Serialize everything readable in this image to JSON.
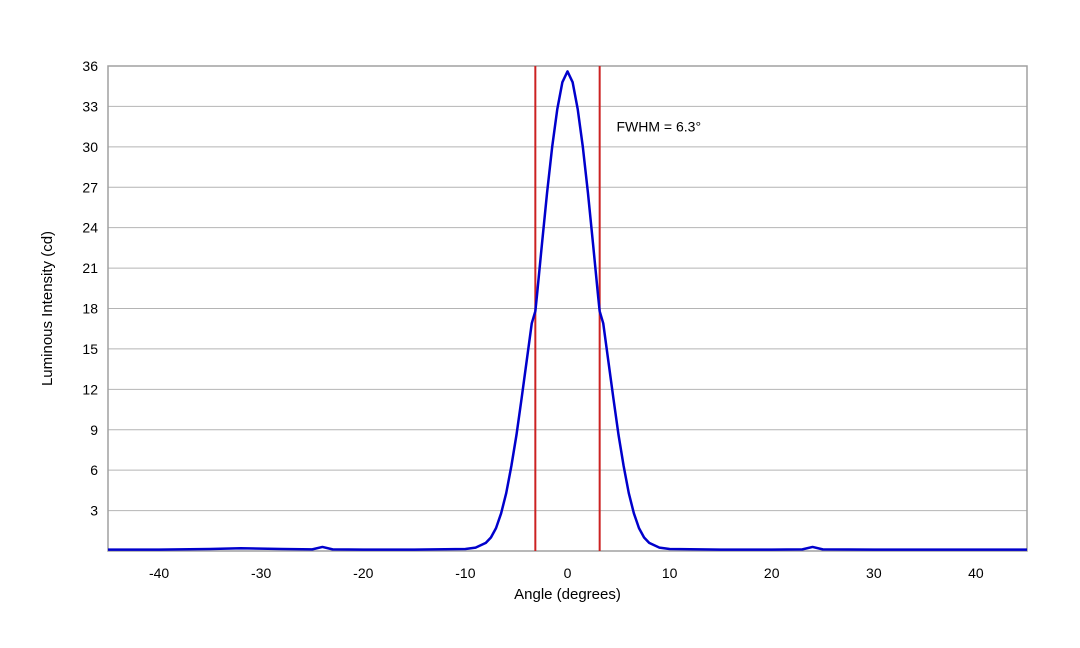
{
  "chart_data": {
    "type": "line",
    "title": "",
    "xlabel": "Angle (degrees)",
    "ylabel": "Luminous Intensity (cd)",
    "xlim": [
      -45,
      45
    ],
    "ylim": [
      0,
      36
    ],
    "xticks": [
      -40,
      -30,
      -20,
      -10,
      0,
      10,
      20,
      30,
      40
    ],
    "yticks": [
      3,
      6,
      9,
      12,
      15,
      18,
      21,
      24,
      27,
      30,
      33,
      36
    ],
    "grid": "horizontal",
    "legend": "none",
    "series": [
      {
        "color": "#0000cc",
        "x": [
          -45,
          -40,
          -35,
          -32,
          -28,
          -25,
          -24,
          -23,
          -20,
          -15,
          -10,
          -9,
          -8,
          -7.5,
          -7,
          -6.5,
          -6,
          -5.5,
          -5,
          -4.5,
          -4,
          -3.5,
          -3.15,
          -3,
          -2.5,
          -2,
          -1.5,
          -1,
          -0.5,
          0,
          0.5,
          1,
          1.5,
          2,
          2.5,
          3,
          3.15,
          3.5,
          4,
          4.5,
          5,
          5.5,
          6,
          6.5,
          7,
          7.5,
          8,
          9,
          10,
          15,
          20,
          23,
          24,
          25,
          30,
          35,
          40,
          45
        ],
        "y": [
          0.1,
          0.1,
          0.15,
          0.2,
          0.15,
          0.12,
          0.3,
          0.12,
          0.1,
          0.1,
          0.15,
          0.25,
          0.6,
          1.0,
          1.7,
          2.8,
          4.3,
          6.3,
          8.6,
          11.3,
          14.1,
          16.9,
          17.8,
          18.9,
          22.8,
          26.6,
          30.0,
          32.8,
          34.8,
          35.6,
          34.8,
          32.8,
          30.0,
          26.6,
          22.8,
          18.9,
          17.8,
          16.9,
          14.1,
          11.3,
          8.6,
          6.3,
          4.3,
          2.8,
          1.7,
          1.0,
          0.6,
          0.25,
          0.15,
          0.1,
          0.1,
          0.12,
          0.3,
          0.12,
          0.1,
          0.1,
          0.1,
          0.1
        ]
      }
    ],
    "markers": [
      {
        "x": -3.15,
        "color": "#cc2222"
      },
      {
        "x": 3.15,
        "color": "#cc2222"
      }
    ],
    "annotations": [
      {
        "text": "FWHM = 6.3°",
        "x": 4.8,
        "y": 31.5
      }
    ]
  }
}
